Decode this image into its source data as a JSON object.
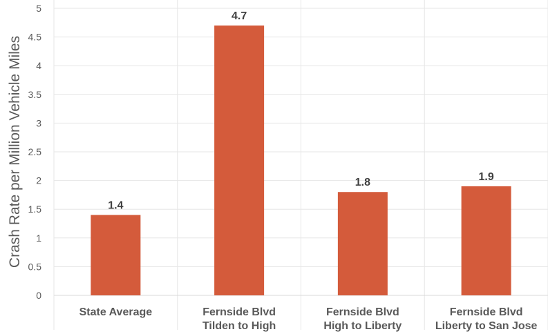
{
  "chart_data": {
    "type": "bar",
    "title": "",
    "xlabel": "",
    "ylabel": "Crash Rate per Million Vehicle Miles",
    "categories": [
      [
        "State Average"
      ],
      [
        "Fernside Blvd",
        "Tilden to High"
      ],
      [
        "Fernside Blvd",
        "High to Liberty"
      ],
      [
        "Fernside Blvd",
        "Liberty to San Jose"
      ]
    ],
    "values": [
      1.4,
      4.7,
      1.8,
      1.9
    ],
    "data_labels": [
      "1.4",
      "4.7",
      "1.8",
      "1.9"
    ],
    "ylim": [
      0,
      5
    ],
    "yticks": [
      "0",
      "0.5",
      "1",
      "1.5",
      "2",
      "2.5",
      "3",
      "3.5",
      "4",
      "4.5",
      "5"
    ],
    "grid": true,
    "legend": "none",
    "bar_color": "#D45B3B",
    "grid_color": "#E6E6E6"
  }
}
